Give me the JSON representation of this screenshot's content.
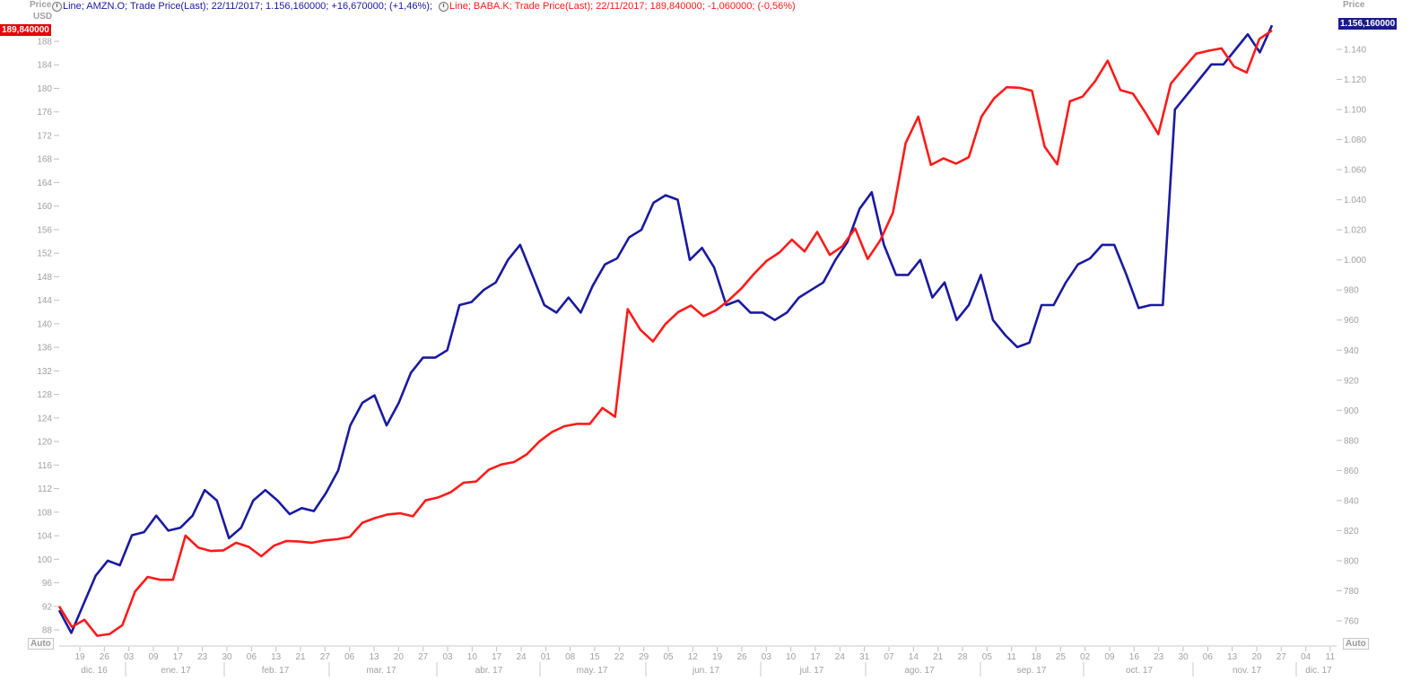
{
  "legend": {
    "amzn": "Line; AMZN.O; Trade Price(Last);  22/11/2017;  1.156,160000;  +16,670000;  (+1,46%);",
    "baba": "Line; BABA.K; Trade Price(Last);  22/11/2017;  189,840000;  -1,060000;  (-0,56%)",
    "clock_icon": "clock-icon"
  },
  "axes": {
    "left_title": "Price",
    "left_unit": "USD",
    "right_title": "Price",
    "auto_label": "Auto",
    "left_last_value": "189,840000",
    "right_last_value": "1.156,160000"
  },
  "colors": {
    "amzn": "#1a1aa0",
    "baba": "#ff1a1a",
    "axis_text": "#a0a0a0",
    "right_badge": "#1a1a8c",
    "left_badge": "#e8000a"
  },
  "chart_data": {
    "type": "line",
    "title": "",
    "left_axis": {
      "min": 87,
      "max": 190,
      "ticks": [
        88,
        92,
        96,
        100,
        104,
        108,
        112,
        116,
        120,
        124,
        128,
        132,
        136,
        140,
        144,
        148,
        152,
        156,
        160,
        164,
        168,
        172,
        176,
        180,
        184,
        188
      ]
    },
    "right_axis": {
      "min": 752,
      "max": 1157,
      "ticks": [
        "760",
        "780",
        "800",
        "820",
        "840",
        "860",
        "880",
        "900",
        "920",
        "940",
        "960",
        "980",
        "1.000",
        "1.020",
        "1.040",
        "1.060",
        "1.080",
        "1.100",
        "1.120",
        "1.140"
      ],
      "tick_values": [
        760,
        780,
        800,
        820,
        840,
        860,
        880,
        900,
        920,
        940,
        960,
        980,
        1000,
        1020,
        1040,
        1060,
        1080,
        1100,
        1120,
        1140
      ]
    },
    "x_day_labels": [
      "19",
      "26",
      "03",
      "09",
      "17",
      "23",
      "30",
      "06",
      "13",
      "21",
      "27",
      "06",
      "13",
      "20",
      "27",
      "03",
      "10",
      "17",
      "24",
      "01",
      "08",
      "15",
      "22",
      "29",
      "05",
      "12",
      "19",
      "26",
      "03",
      "10",
      "17",
      "24",
      "31",
      "07",
      "14",
      "21",
      "28",
      "05",
      "11",
      "18",
      "25",
      "02",
      "09",
      "16",
      "23",
      "30",
      "06",
      "13",
      "20",
      "27",
      "04",
      "11"
    ],
    "x_month_labels": [
      "dic. 16",
      "ene. 17",
      "feb. 17",
      "mar. 17",
      "abr. 17",
      "may. 17",
      "jun. 17",
      "jul. 17",
      "ago. 17",
      "sep. 17",
      "oct. 17",
      "nov. 17",
      "dic. 17"
    ],
    "series": [
      {
        "name": "AMZN.O",
        "axis": "right",
        "values": [
          767,
          752,
          771,
          790,
          800,
          797,
          817,
          819,
          830,
          820,
          822,
          830,
          847,
          840,
          815,
          822,
          840,
          847,
          840,
          831,
          835,
          833,
          845,
          860,
          890,
          905,
          910,
          890,
          905,
          925,
          935,
          935,
          940,
          970,
          972,
          980,
          985,
          1000,
          1010,
          990,
          970,
          965,
          975,
          965,
          983,
          997,
          1001,
          1015,
          1020,
          1038,
          1043,
          1040,
          1000,
          1008,
          995,
          970,
          973,
          965,
          965,
          960,
          965,
          975,
          980,
          985,
          1000,
          1012,
          1034,
          1045,
          1010,
          990,
          990,
          1000,
          975,
          985,
          960,
          970,
          990,
          960,
          950,
          942,
          945,
          970,
          970,
          985,
          997,
          1001,
          1010,
          1010,
          990,
          968,
          970,
          970,
          1100,
          1110,
          1120,
          1130,
          1130,
          1140,
          1150,
          1138,
          1156
        ]
      },
      {
        "name": "BABA.K",
        "axis": "left",
        "values": [
          92.0,
          88.5,
          89.7,
          87.0,
          87.3,
          88.8,
          94.5,
          97.0,
          96.5,
          96.5,
          104.0,
          102.0,
          101.4,
          101.5,
          102.8,
          102.1,
          100.5,
          102.3,
          103.1,
          103.0,
          102.8,
          103.2,
          103.4,
          103.8,
          106.2,
          107.0,
          107.6,
          107.8,
          107.3,
          110.0,
          110.5,
          111.4,
          113.0,
          113.2,
          115.2,
          116.1,
          116.5,
          117.8,
          120.0,
          121.6,
          122.6,
          123.0,
          123.0,
          125.7,
          124.2,
          142.5,
          139.0,
          137.0,
          140.0,
          142.0,
          143.1,
          141.3,
          142.3,
          144.0,
          146.0,
          148.5,
          150.7,
          152.1,
          154.3,
          152.3,
          155.6,
          151.7,
          153.2,
          156.2,
          151.0,
          154.2,
          158.9,
          170.7,
          175.2,
          167.0,
          168.1,
          167.2,
          168.3,
          175.2,
          178.3,
          180.2,
          180.1,
          179.6,
          170.1,
          167.1,
          177.8,
          178.6,
          181.2,
          184.7,
          179.7,
          179.1,
          175.8,
          172.2,
          180.8,
          183.4,
          185.9,
          186.4,
          186.8,
          183.7,
          182.7,
          188.4,
          189.84
        ]
      }
    ]
  }
}
